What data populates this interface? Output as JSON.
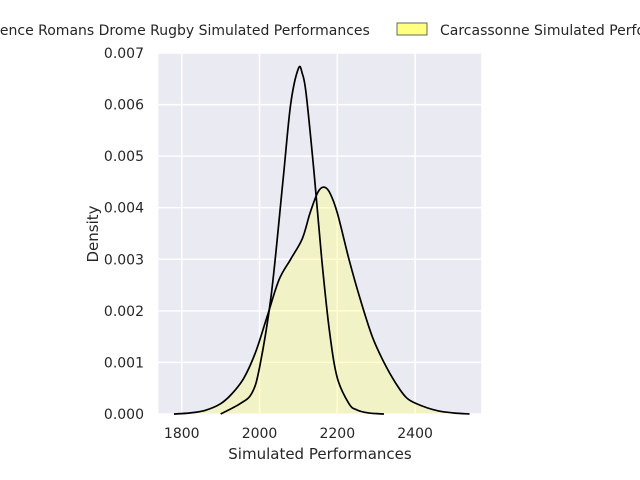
{
  "chart_data": {
    "type": "area",
    "title": "",
    "xlabel": "Simulated Performances",
    "ylabel": "Density",
    "xlim": [
      1740,
      2570
    ],
    "ylim": [
      0,
      0.007
    ],
    "grid": true,
    "legend_position": "top",
    "x_ticks": [
      "1800",
      "2000",
      "2200",
      "2400"
    ],
    "y_ticks": [
      "0.000",
      "0.001",
      "0.002",
      "0.003",
      "0.004",
      "0.005",
      "0.006",
      "0.007"
    ],
    "series": [
      {
        "name": "Valence Romans Drome Rugby Simulated Performances",
        "legend_text": "lence Romans Drome Rugby Simulated Performances",
        "fill": "none",
        "line_color": "#000000",
        "x": [
          1900,
          1950,
          1980,
          2000,
          2030,
          2060,
          2080,
          2100,
          2110,
          2120,
          2140,
          2160,
          2180,
          2200,
          2230,
          2250,
          2280,
          2320
        ],
        "y": [
          0.0,
          0.0002,
          0.0004,
          0.0009,
          0.0023,
          0.0045,
          0.006,
          0.0067,
          0.0066,
          0.0062,
          0.0047,
          0.003,
          0.0016,
          0.0007,
          0.0002,
          8e-05,
          2e-05,
          0.0
        ]
      },
      {
        "name": "Carcassonne Simulated Performances",
        "legend_text": "Carcassonne Simulated Performances",
        "fill": "#ffff80",
        "line_color": "#000000",
        "x": [
          1780,
          1820,
          1860,
          1900,
          1930,
          1960,
          1990,
          2020,
          2050,
          2080,
          2110,
          2130,
          2150,
          2165,
          2180,
          2200,
          2230,
          2260,
          2290,
          2320,
          2350,
          2380,
          2420,
          2460,
          2500,
          2540
        ],
        "y": [
          0.0,
          2e-05,
          7e-05,
          0.0002,
          0.0004,
          0.0007,
          0.0012,
          0.0019,
          0.0026,
          0.003,
          0.0034,
          0.0039,
          0.0043,
          0.0044,
          0.0043,
          0.0039,
          0.003,
          0.0022,
          0.0015,
          0.001,
          0.0006,
          0.0003,
          0.00015,
          6e-05,
          2e-05,
          0.0
        ]
      }
    ]
  }
}
